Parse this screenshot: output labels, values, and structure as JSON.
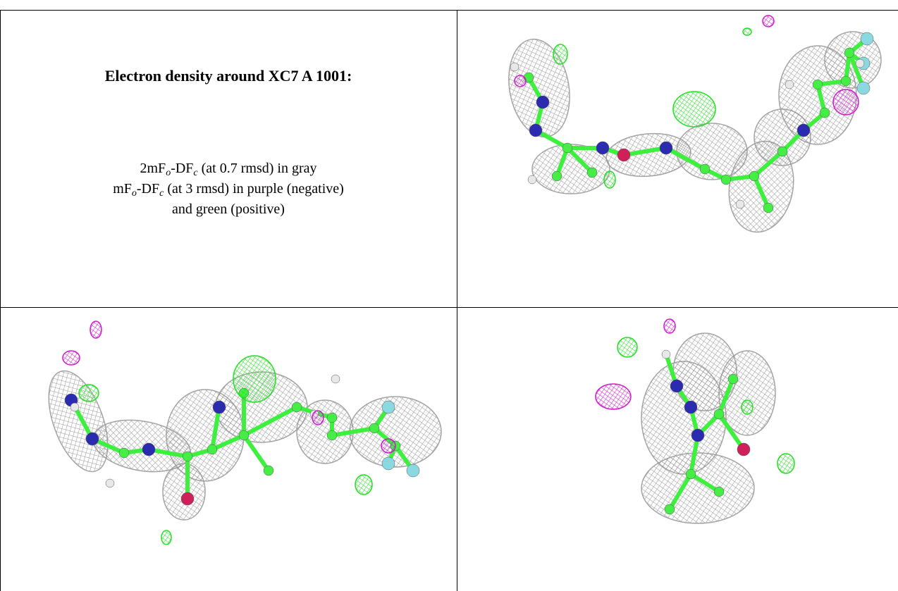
{
  "caption": {
    "title": "Electron density around XC7 A 1001:",
    "lines": [
      {
        "parts": [
          "2mF",
          "o",
          "-DF",
          "c",
          " (at 0.7 rmsd) in gray"
        ]
      },
      {
        "parts": [
          "mF",
          "o",
          "-DF",
          "c",
          " (at 3 rmsd) in purple (negative)"
        ]
      },
      {
        "parts": [
          "and green (positive)"
        ]
      }
    ]
  }
}
